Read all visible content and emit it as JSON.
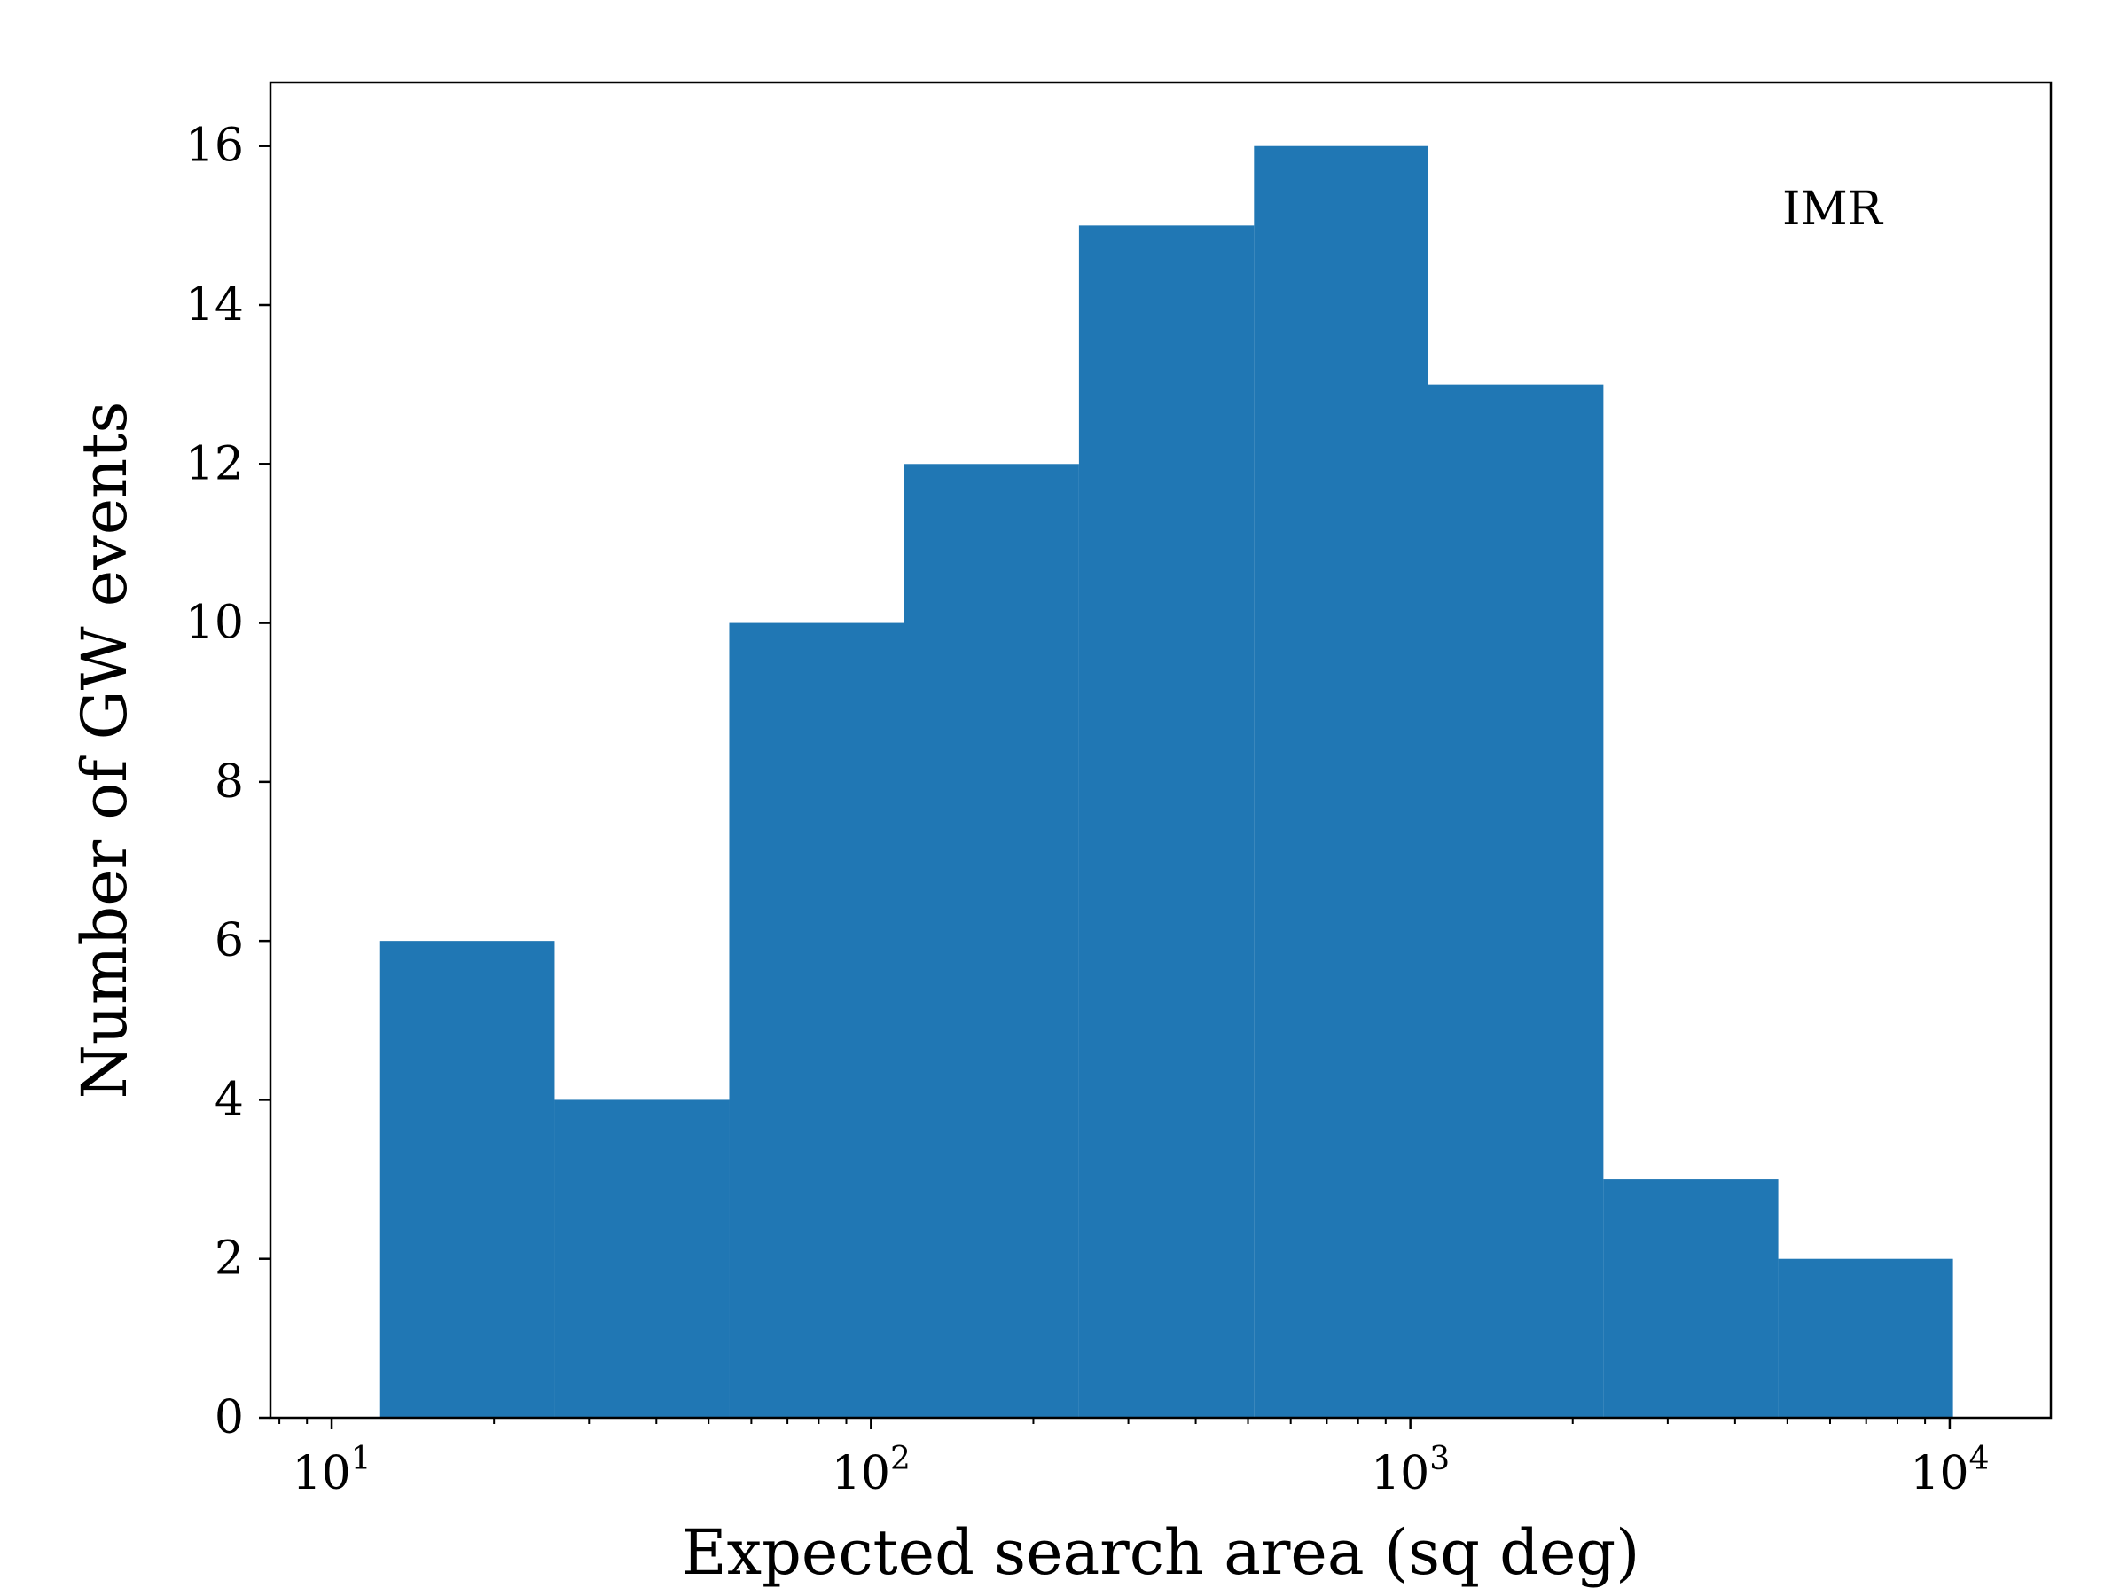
{
  "chart_data": {
    "type": "bar",
    "xlabel": "Expected search area (sq deg)",
    "ylabel": "Number of GW events",
    "annotation": "IMR",
    "x_scale": "log",
    "xlim": [
      7.7,
      15400
    ],
    "ylim": [
      0,
      16.8
    ],
    "bar_color": "#2077b4",
    "bins": [
      {
        "x0": 12.3,
        "x1": 25.9,
        "value": 6
      },
      {
        "x0": 25.9,
        "x1": 54.6,
        "value": 4
      },
      {
        "x0": 54.6,
        "x1": 115,
        "value": 10
      },
      {
        "x0": 115,
        "x1": 243,
        "value": 12
      },
      {
        "x0": 243,
        "x1": 513,
        "value": 15
      },
      {
        "x0": 513,
        "x1": 1080,
        "value": 16
      },
      {
        "x0": 1080,
        "x1": 2280,
        "value": 13
      },
      {
        "x0": 2280,
        "x1": 4810,
        "value": 3
      },
      {
        "x0": 4810,
        "x1": 10140,
        "value": 2
      }
    ],
    "y_ticks": [
      {
        "value": 0,
        "label": "0"
      },
      {
        "value": 2,
        "label": "2"
      },
      {
        "value": 4,
        "label": "4"
      },
      {
        "value": 6,
        "label": "6"
      },
      {
        "value": 8,
        "label": "8"
      },
      {
        "value": 10,
        "label": "10"
      },
      {
        "value": 12,
        "label": "12"
      },
      {
        "value": 14,
        "label": "14"
      },
      {
        "value": 16,
        "label": "16"
      }
    ],
    "x_ticks": [
      {
        "value": 10,
        "base": "10",
        "exp": "1"
      },
      {
        "value": 100,
        "base": "10",
        "exp": "2"
      },
      {
        "value": 1000,
        "base": "10",
        "exp": "3"
      },
      {
        "value": 10000,
        "base": "10",
        "exp": "4"
      }
    ],
    "grid": false
  }
}
